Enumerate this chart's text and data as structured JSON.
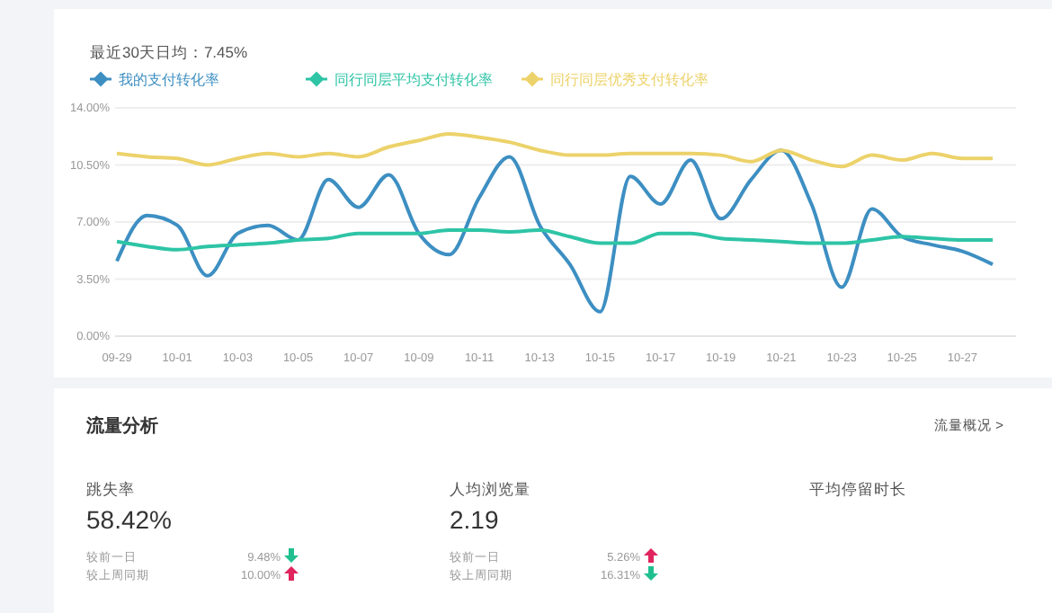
{
  "chart_data": {
    "type": "line",
    "subtitle": "最近30天日均：7.45%",
    "categories": [
      "09-29",
      null,
      "10-01",
      null,
      "10-03",
      null,
      "10-05",
      null,
      "10-07",
      null,
      "10-09",
      null,
      "10-11",
      null,
      "10-13",
      null,
      "10-15",
      null,
      "10-17",
      null,
      "10-19",
      null,
      "10-21",
      null,
      "10-23",
      null,
      "10-25",
      null,
      "10-27",
      null
    ],
    "series": [
      {
        "name": "我的支付转化率",
        "color": "#3d8fc2",
        "values": [
          4.6,
          7.4,
          6.8,
          3.7,
          6.3,
          6.8,
          5.9,
          9.6,
          7.9,
          9.9,
          6.3,
          5.0,
          8.5,
          11.0,
          6.8,
          4.4,
          1.5,
          9.8,
          8.1,
          10.8,
          7.2,
          9.6,
          11.4,
          8.1,
          3.0,
          7.8,
          6.1,
          5.6,
          5.2,
          4.4
        ]
      },
      {
        "name": "同行同层平均支付转化率",
        "color": "#2ec4a6",
        "values": [
          5.8,
          5.5,
          5.3,
          5.5,
          5.6,
          5.7,
          5.9,
          6.0,
          6.3,
          6.3,
          6.3,
          6.5,
          6.5,
          6.4,
          6.5,
          6.1,
          5.7,
          5.7,
          6.3,
          6.3,
          6.0,
          5.9,
          5.8,
          5.7,
          5.7,
          5.9,
          6.1,
          6.0,
          5.9,
          5.9
        ]
      },
      {
        "name": "同行同层优秀支付转化率",
        "color": "#ecd26a",
        "values": [
          11.2,
          11.0,
          10.9,
          10.5,
          10.9,
          11.2,
          11.0,
          11.2,
          11.0,
          11.6,
          12.0,
          12.4,
          12.2,
          11.9,
          11.4,
          11.1,
          11.1,
          11.2,
          11.2,
          11.2,
          11.1,
          10.7,
          11.4,
          10.8,
          10.4,
          11.1,
          10.8,
          11.2,
          10.9,
          10.9
        ]
      }
    ],
    "ylim": [
      0,
      14
    ],
    "yticks": [
      {
        "value": 0,
        "label": "0.00%"
      },
      {
        "value": 3.5,
        "label": "3.50%"
      },
      {
        "value": 7,
        "label": "7.00%"
      },
      {
        "value": 10.5,
        "label": "10.50%"
      },
      {
        "value": 14,
        "label": "14.00%"
      }
    ],
    "grid": "y",
    "legend": "top left",
    "marker": "none",
    "line_style": "solid",
    "annotations": [
      "流量分析",
      "流量概况 >",
      "跳失率",
      "58.42%",
      "较前一日",
      "9.48%",
      "较上周同期",
      "10.00%",
      "人均浏览量",
      "2.19",
      "较前一日",
      "5.26%",
      "较上周同期",
      "16.31%",
      "平均停留时长"
    ]
  }
}
